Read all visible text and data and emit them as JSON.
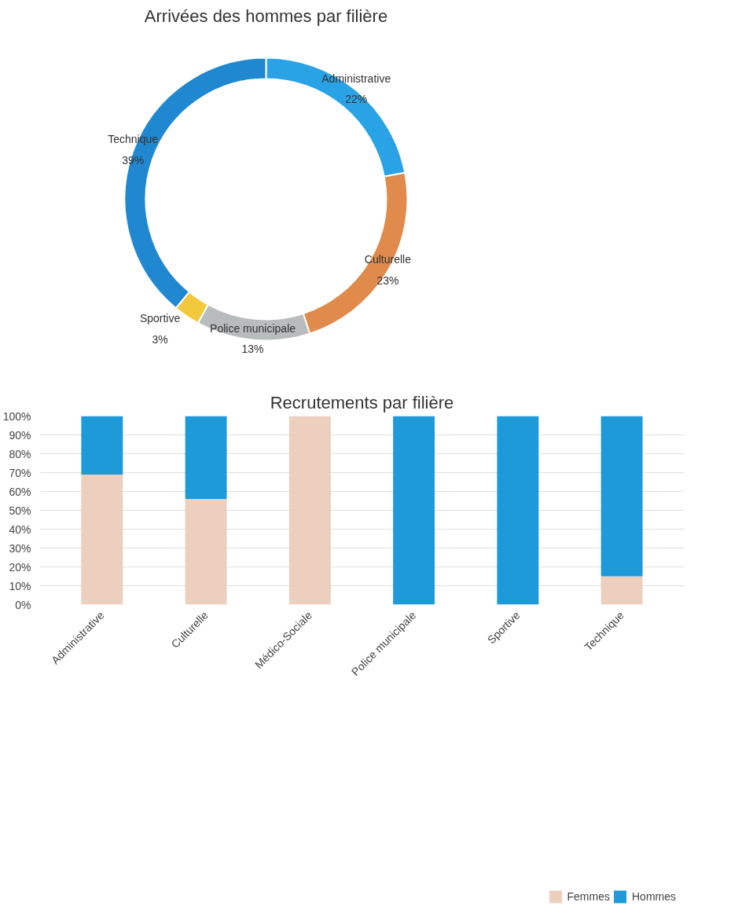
{
  "chart_data": [
    {
      "type": "donut",
      "title": "Arrivées des hommes par filière",
      "categories": [
        "Administrative",
        "Culturelle",
        "Police municipale",
        "Sportive",
        "Technique"
      ],
      "values": [
        22,
        23,
        13,
        3,
        39
      ],
      "colors": [
        "#2aa3e6",
        "#e08a4c",
        "#b8bcbc",
        "#f2c83c",
        "#2088d0"
      ],
      "value_labels": [
        "22%",
        "23%",
        "13%",
        "3%",
        "39%"
      ]
    },
    {
      "type": "bar",
      "title": "Recrutements par filière",
      "categories": [
        "Administrative",
        "Culturelle",
        "Médico-Sociale",
        "Police municipale",
        "Sportive",
        "Technique"
      ],
      "stacked": true,
      "series": [
        {
          "name": "Femmes",
          "color": "#eccfbd",
          "values": [
            69,
            56,
            100,
            0,
            0,
            15
          ]
        },
        {
          "name": "Hommes",
          "color": "#1e9ad8",
          "values": [
            31,
            44,
            0,
            100,
            100,
            85
          ]
        }
      ],
      "ylim": [
        0,
        100
      ],
      "yticks": [
        {
          "value": 0,
          "label": "0%"
        },
        {
          "value": 10,
          "label": "10%"
        },
        {
          "value": 20,
          "label": "20%"
        },
        {
          "value": 30,
          "label": "30%"
        },
        {
          "value": 40,
          "label": "40%"
        },
        {
          "value": 50,
          "label": "50%"
        },
        {
          "value": 60,
          "label": "60%"
        },
        {
          "value": 70,
          "label": "70%"
        },
        {
          "value": 80,
          "label": "80%"
        },
        {
          "value": 90,
          "label": "90%"
        },
        {
          "value": 100,
          "label": "100%"
        }
      ],
      "grid": "y",
      "legend": "bottom"
    }
  ]
}
